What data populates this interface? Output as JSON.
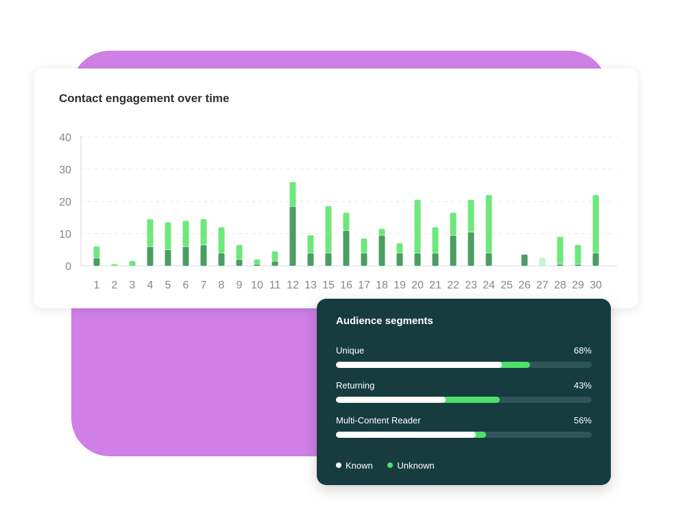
{
  "chart_data": {
    "type": "bar",
    "stacked": true,
    "title": "Contact engagement over time",
    "xlabel": "",
    "ylabel": "",
    "ylim": [
      0,
      40
    ],
    "yticks": [
      0,
      10,
      20,
      30,
      40
    ],
    "grid": true,
    "categories": [
      "1",
      "2",
      "3",
      "4",
      "5",
      "6",
      "7",
      "8",
      "9",
      "10",
      "11",
      "12",
      "13",
      "15",
      "16",
      "17",
      "18",
      "19",
      "20",
      "21",
      "22",
      "23",
      "24",
      "25",
      "26",
      "27",
      "28",
      "29",
      "30"
    ],
    "series": [
      {
        "color": "#4a9e61",
        "values": [
          2.5,
          0,
          0,
          6,
          5,
          6,
          6.5,
          4,
          2,
          0.5,
          1.5,
          18.5,
          4,
          4,
          11,
          4,
          9.5,
          4,
          4,
          4,
          9.5,
          10.5,
          4,
          0,
          3.5,
          0,
          0.5,
          0.5,
          4
        ]
      },
      {
        "color": "#6ee87c",
        "values": [
          3.5,
          0.5,
          1.5,
          8.5,
          8.5,
          8,
          8,
          8,
          4.5,
          1.5,
          3,
          7.5,
          5.5,
          14.5,
          5.5,
          4.5,
          2,
          3,
          16.5,
          8,
          7,
          10,
          18,
          0,
          0,
          2.5,
          8.5,
          6,
          18
        ]
      }
    ],
    "light_bar": {
      "category": "27",
      "color": "#c9f3cf"
    }
  },
  "segments": {
    "title": "Audience segments",
    "items": [
      {
        "label": "Unique",
        "value": "68%",
        "total": 0.76,
        "known": 0.65
      },
      {
        "label": "Returning",
        "value": "43%",
        "total": 0.64,
        "known": 0.43
      },
      {
        "label": "Multi-Content Reader",
        "value": "56%",
        "total": 0.586,
        "known": 0.548
      }
    ],
    "legend": {
      "known": "Known",
      "unknown": "Unknown"
    }
  },
  "colors": {
    "accent_purple": "#cf7fe6",
    "card_dark": "#173c40",
    "bar_dark": "#4a9e61",
    "bar_light": "#6ee87c"
  }
}
